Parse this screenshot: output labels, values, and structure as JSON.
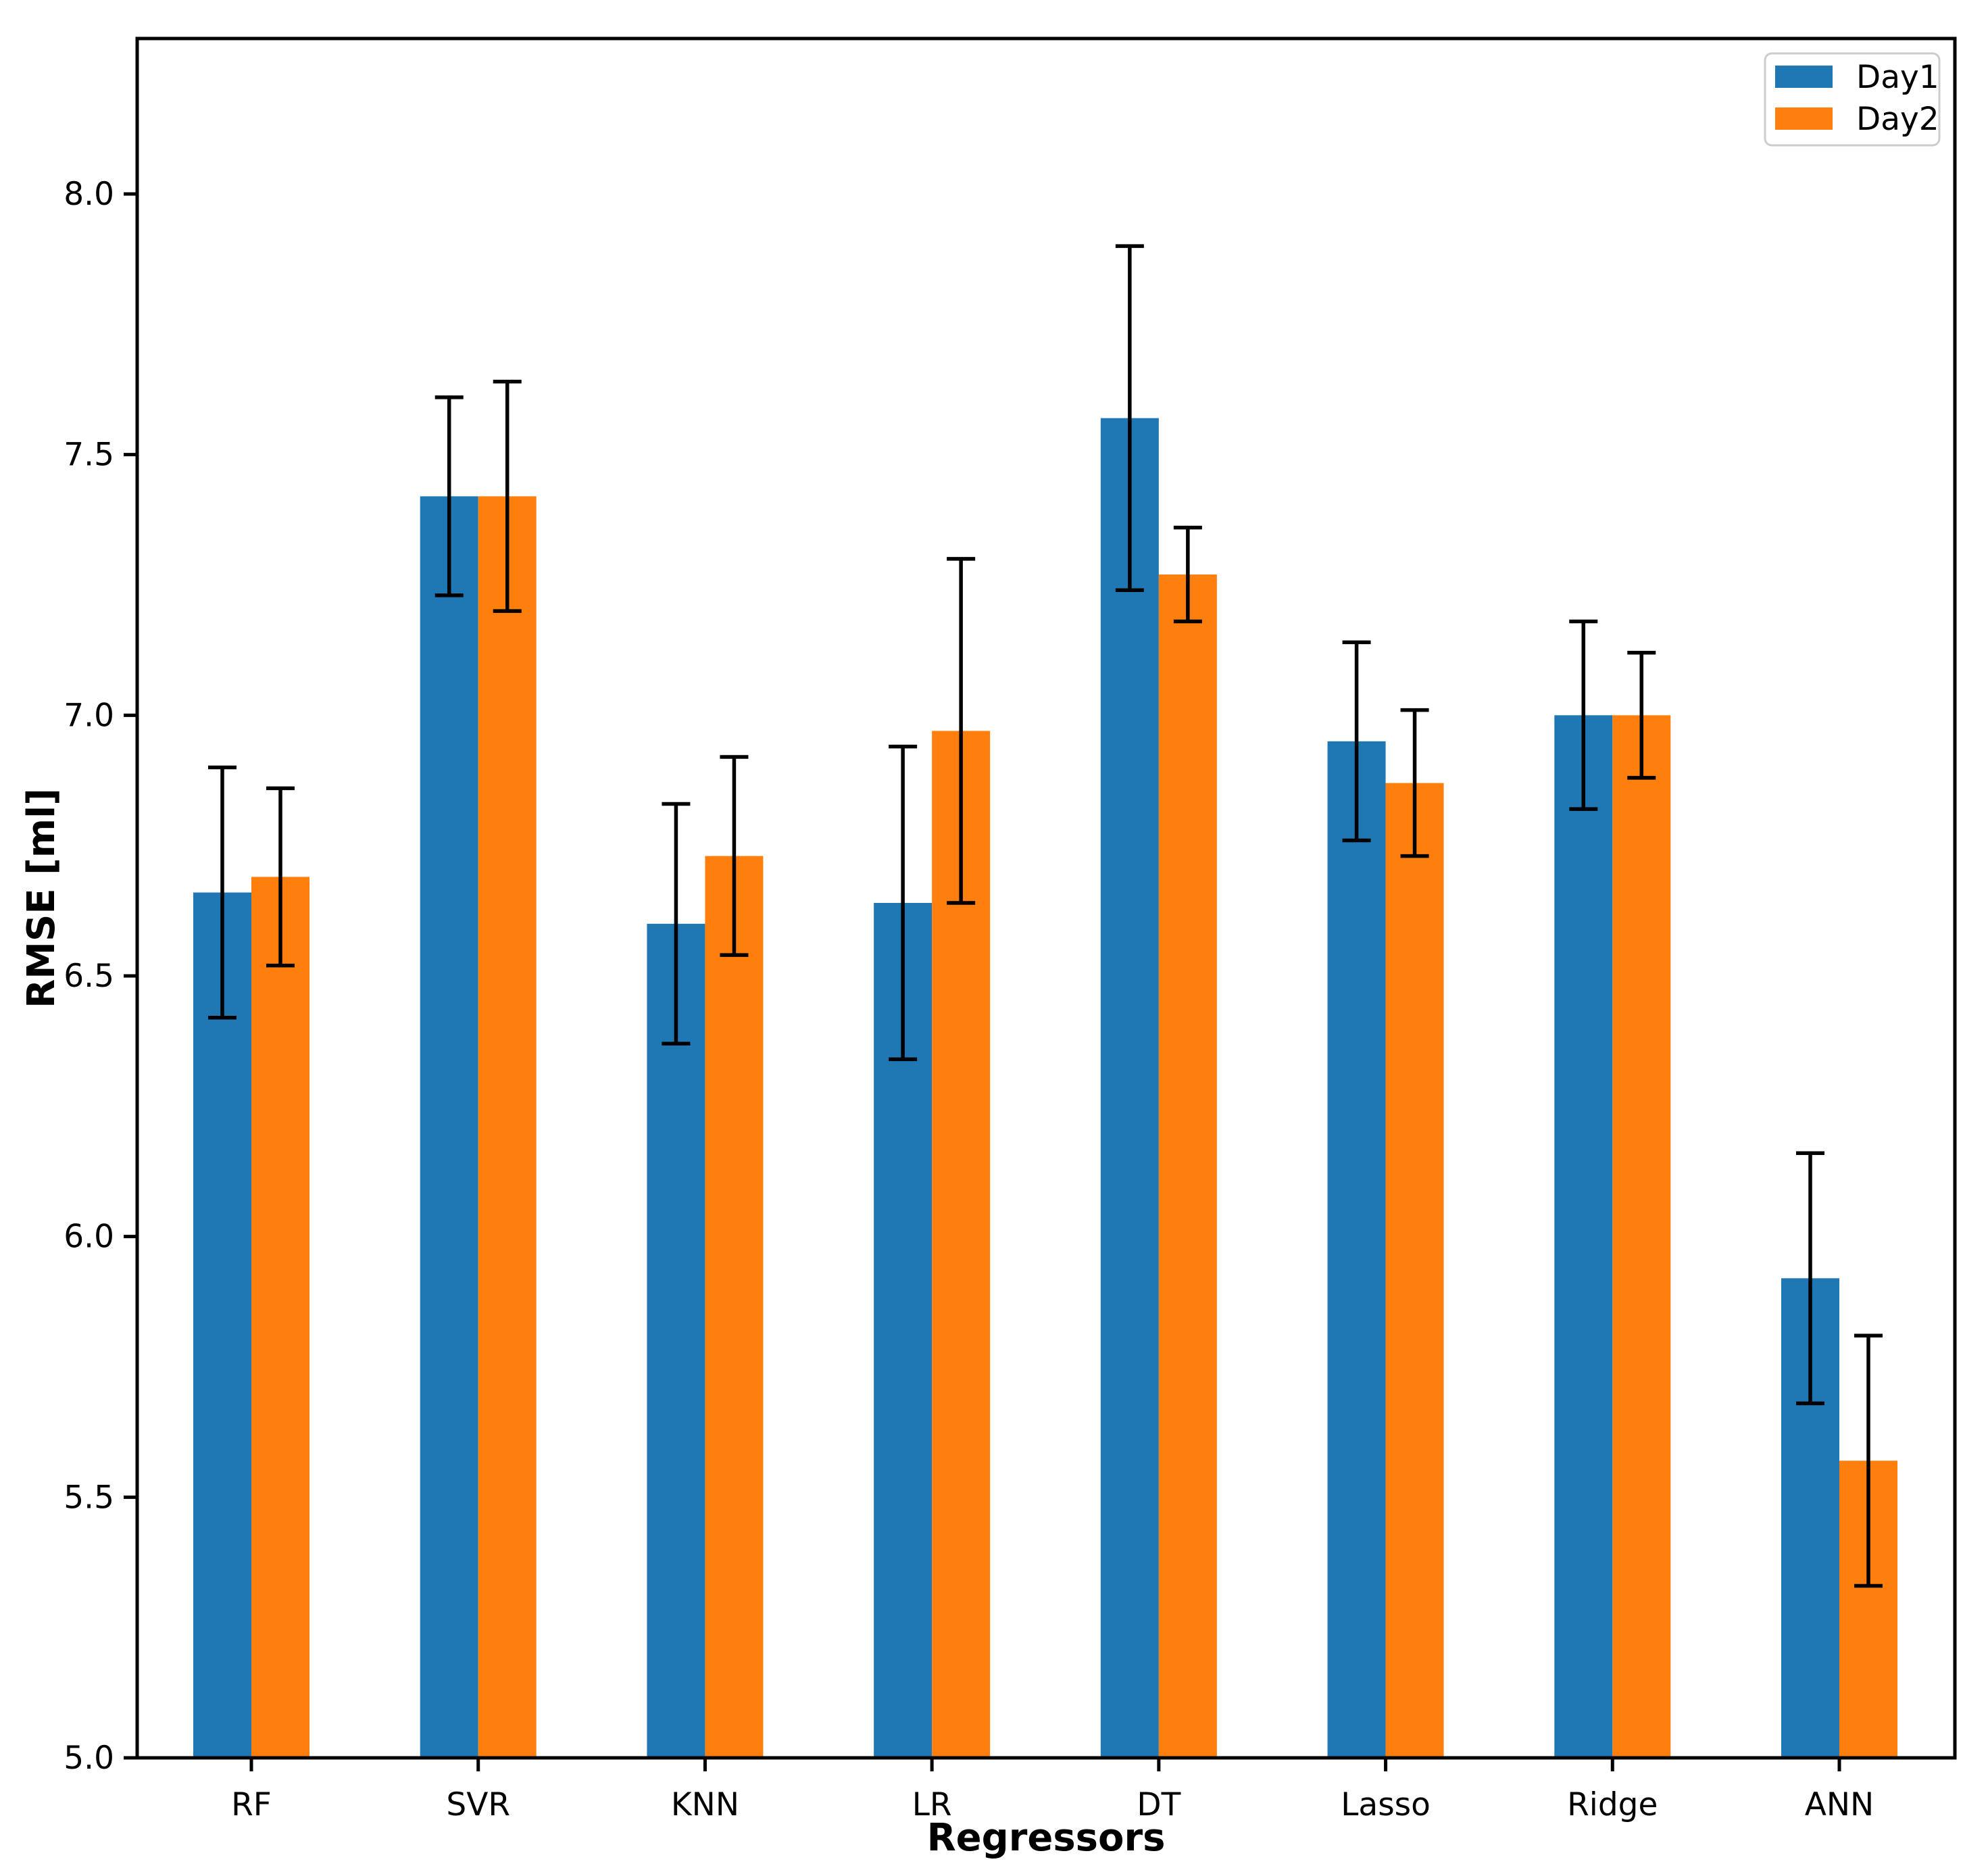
{
  "figure": {
    "xlabel": "Regressors",
    "ylabel": "RMSE [ml]"
  },
  "legend": {
    "entries": [
      "Day1",
      "Day2"
    ]
  },
  "chart_data": {
    "type": "bar",
    "title": "",
    "xlabel": "Regressors",
    "ylabel": "RMSE [ml]",
    "categories": [
      "RF",
      "SVR",
      "KNN",
      "LR",
      "DT",
      "Lasso",
      "Ridge",
      "ANN"
    ],
    "series": [
      {
        "name": "Day1",
        "color": "#1f77b4",
        "values": [
          6.66,
          7.42,
          6.6,
          6.64,
          7.57,
          6.95,
          7.0,
          5.92
        ],
        "errors": [
          0.24,
          0.19,
          0.23,
          0.3,
          0.33,
          0.19,
          0.18,
          0.24
        ]
      },
      {
        "name": "Day2",
        "color": "#ff7f0e",
        "values": [
          6.69,
          7.42,
          6.73,
          6.97,
          7.27,
          6.87,
          7.0,
          5.57
        ],
        "errors": [
          0.17,
          0.22,
          0.19,
          0.33,
          0.09,
          0.14,
          0.12,
          0.24
        ]
      }
    ],
    "error_bar_color": "#000000",
    "ylim": [
      5.0,
      8.3
    ],
    "yticks": [
      5.0,
      5.5,
      6.0,
      6.5,
      7.0,
      7.5,
      8.0
    ],
    "ytick_format_decimals": 1,
    "grid": false,
    "legend_position": "upper right",
    "bar_baseline": 5.0
  }
}
